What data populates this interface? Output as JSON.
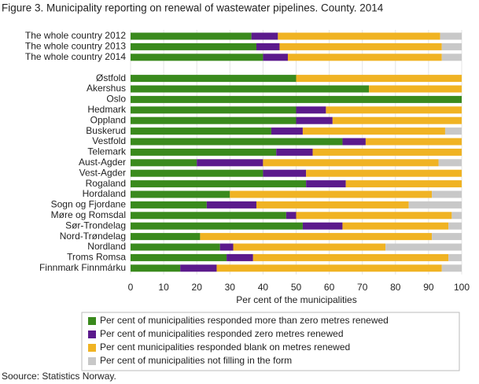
{
  "chart_data": {
    "type": "bar",
    "orientation": "horizontal",
    "stacked": true,
    "title": "Figure 3. Municipality reporting on renewal of wastewater pipelines. County. 2014",
    "xlabel": "Per cent of the municipalities",
    "source": "Soource: Statistics Norway.",
    "categories": [
      "The whole country 2012",
      "The whole country 2013",
      "The whole country 2014",
      null,
      "Østfold",
      "Akershus",
      "Oslo",
      "Hedmark",
      "Oppland",
      "Buskerud",
      "Vestfold",
      "Telemark",
      "Aust-Agder",
      "Vest-Agder",
      "Rogaland",
      "Hordaland",
      "Sogn og Fjordane",
      "Møre og Romsdal",
      "Sør-Trondelag",
      "Nord-Trøndelag",
      "Nordland",
      "Troms Romsa",
      "Finnmark Finnmárku"
    ],
    "series": [
      {
        "name": "Per cent of municipalities responded more than zero metres renewed",
        "color": "#3a8a1d",
        "values": [
          36.5,
          38,
          40,
          null,
          50,
          72,
          100,
          50,
          50,
          42.5,
          64,
          44,
          20,
          40,
          53,
          30,
          23,
          47,
          52,
          21,
          27,
          29,
          15
        ]
      },
      {
        "name": "Per cent of municipalities responded zero metres renewed",
        "color": "#5b1a8c",
        "values": [
          8,
          7,
          7.5,
          null,
          0,
          0,
          0,
          9,
          11,
          9.5,
          7,
          11,
          20,
          13,
          12,
          0,
          15,
          3,
          12,
          0,
          4,
          8,
          11
        ]
      },
      {
        "name": "Per cent municipalities responded blank on metres renewed",
        "color": "#f0b323",
        "values": [
          49,
          49,
          46.5,
          null,
          50,
          28,
          0,
          41,
          39,
          43,
          29,
          45,
          53,
          47,
          35,
          61,
          46,
          47,
          32,
          70,
          46,
          59,
          68
        ]
      },
      {
        "name": "Per cent of municipalities not filling in the form",
        "color": "#c8c8c8",
        "values": [
          6.5,
          6,
          6,
          null,
          0,
          0,
          0,
          0,
          0,
          5,
          0,
          0,
          7,
          0,
          0,
          9,
          16,
          3,
          4,
          9,
          23,
          4,
          6
        ]
      }
    ],
    "xlim": [
      0,
      100
    ],
    "xticks": [
      0,
      10,
      20,
      30,
      40,
      50,
      60,
      70,
      80,
      90,
      100
    ],
    "grid": true
  }
}
